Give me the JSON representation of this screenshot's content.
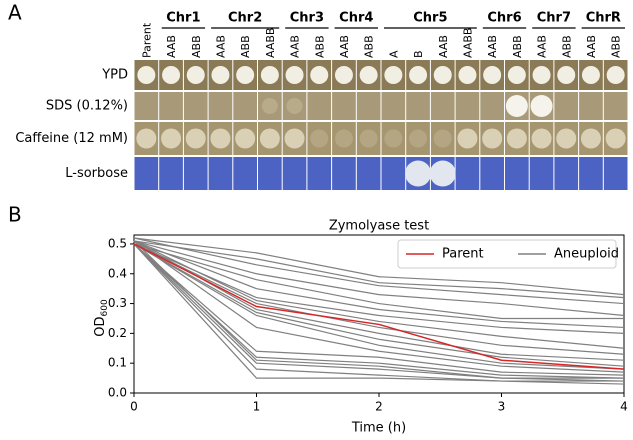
{
  "panel_a": {
    "label": "A",
    "first_column": "Parent",
    "groups": [
      {
        "name": "Chr1",
        "columns": [
          "AAB",
          "ABB"
        ]
      },
      {
        "name": "Chr2",
        "columns": [
          "AAB",
          "ABB",
          "AABB"
        ]
      },
      {
        "name": "Chr3",
        "columns": [
          "AAB",
          "ABB"
        ]
      },
      {
        "name": "Chr4",
        "columns": [
          "AAB",
          "ABB"
        ]
      },
      {
        "name": "Chr5",
        "columns": [
          "A",
          "B",
          "AAB",
          "AABB"
        ]
      },
      {
        "name": "Chr6",
        "columns": [
          "AAB",
          "ABB"
        ]
      },
      {
        "name": "Chr7",
        "columns": [
          "AAB",
          "ABB"
        ]
      },
      {
        "name": "ChrR",
        "columns": [
          "AAB",
          "ABB"
        ]
      }
    ],
    "rows": [
      "YPD",
      "SDS (0.12%)",
      "Caffeine (12 mM)",
      "L-sorbose"
    ]
  },
  "panel_b_label": "B",
  "chart_data": {
    "type": "line",
    "title": "Zymolyase test",
    "x_label": "Time (h)",
    "y_label": {
      "text": "OD",
      "subscript": "600"
    },
    "x": [
      0,
      1,
      2,
      3,
      4
    ],
    "xlim": [
      0,
      4
    ],
    "xticks": [
      0,
      1,
      2,
      3,
      4
    ],
    "ylim": [
      0,
      0.53
    ],
    "yticks": [
      {
        "value": 0,
        "label": "0.0"
      },
      {
        "value": 0.1,
        "label": "0.1"
      },
      {
        "value": 0.2,
        "label": "0.2"
      },
      {
        "value": 0.3,
        "label": "0.3"
      },
      {
        "value": 0.4,
        "label": "0.4"
      },
      {
        "value": 0.5,
        "label": "0.5"
      }
    ],
    "legend": "upper right",
    "series": [
      {
        "name": "Parent",
        "color": "#d62728",
        "values": [
          0.5,
          0.29,
          0.23,
          0.11,
          0.08
        ]
      },
      {
        "name": "Aneuploid",
        "color": "#808080",
        "lines": [
          [
            0.52,
            0.47,
            0.39,
            0.37,
            0.33
          ],
          [
            0.51,
            0.45,
            0.37,
            0.35,
            0.32
          ],
          [
            0.52,
            0.43,
            0.36,
            0.33,
            0.3
          ],
          [
            0.51,
            0.4,
            0.33,
            0.3,
            0.26
          ],
          [
            0.5,
            0.38,
            0.3,
            0.25,
            0.25
          ],
          [
            0.51,
            0.35,
            0.28,
            0.24,
            0.22
          ],
          [
            0.5,
            0.32,
            0.26,
            0.22,
            0.2
          ],
          [
            0.51,
            0.31,
            0.24,
            0.19,
            0.15
          ],
          [
            0.5,
            0.3,
            0.22,
            0.16,
            0.13
          ],
          [
            0.51,
            0.28,
            0.2,
            0.13,
            0.11
          ],
          [
            0.5,
            0.27,
            0.18,
            0.12,
            0.09
          ],
          [
            0.5,
            0.26,
            0.16,
            0.1,
            0.08
          ],
          [
            0.51,
            0.22,
            0.14,
            0.09,
            0.07
          ],
          [
            0.5,
            0.14,
            0.12,
            0.07,
            0.06
          ],
          [
            0.5,
            0.12,
            0.1,
            0.06,
            0.05
          ],
          [
            0.51,
            0.11,
            0.09,
            0.05,
            0.05
          ],
          [
            0.5,
            0.1,
            0.08,
            0.05,
            0.04
          ],
          [
            0.5,
            0.08,
            0.06,
            0.04,
            0.04
          ],
          [
            0.5,
            0.05,
            0.05,
            0.04,
            0.03
          ]
        ]
      }
    ]
  }
}
